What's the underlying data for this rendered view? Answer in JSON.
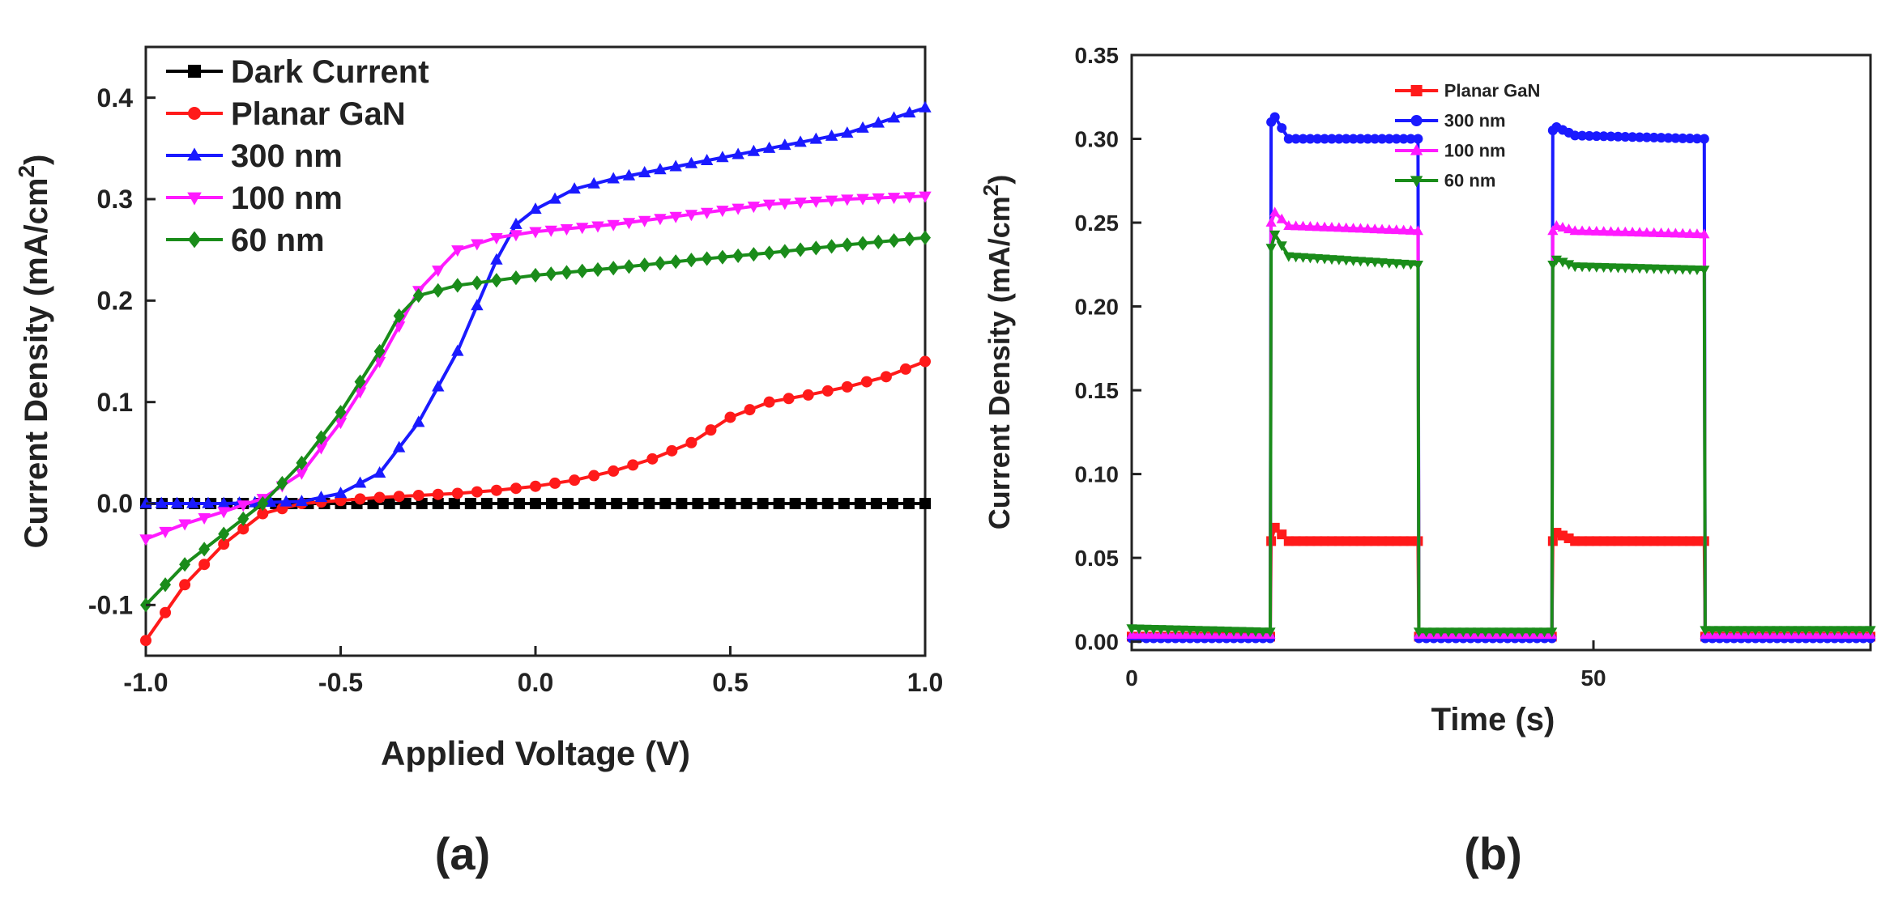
{
  "chart_data": [
    {
      "panel_label": "(a)",
      "type": "line",
      "title": "",
      "xlabel": "Applied Voltage (V)",
      "ylabel": "Current Density (mA/cm",
      "ylabel_sup": "2",
      "ylabel_end": ")",
      "xlim": [
        -1.0,
        1.0
      ],
      "ylim": [
        -0.15,
        0.45
      ],
      "xticks": [
        -1.0,
        -0.5,
        0.0,
        0.5,
        1.0
      ],
      "xtick_labels": [
        "-1.0",
        "-0.5",
        "0.0",
        "0.5",
        "1.0"
      ],
      "yticks": [
        -0.1,
        0.0,
        0.1,
        0.2,
        0.3,
        0.4
      ],
      "ytick_labels": [
        "-0.1",
        "0.0",
        "0.1",
        "0.2",
        "0.3",
        "0.4"
      ],
      "legend_position": "top-left",
      "series": [
        {
          "name": "Dark Current",
          "color": "#000000",
          "marker": "square",
          "x": [
            -1.0,
            -0.5,
            0.0,
            0.5,
            1.0
          ],
          "y": [
            0.0,
            0.0,
            0.0,
            0.0,
            0.0
          ]
        },
        {
          "name": "Planar GaN",
          "color": "#ff1a1a",
          "marker": "circle",
          "x": [
            -1.0,
            -0.9,
            -0.8,
            -0.7,
            -0.6,
            -0.5,
            -0.4,
            -0.3,
            -0.2,
            -0.1,
            0.0,
            0.1,
            0.2,
            0.3,
            0.4,
            0.5,
            0.6,
            0.7,
            0.8,
            0.9,
            1.0
          ],
          "y": [
            -0.135,
            -0.08,
            -0.04,
            -0.01,
            0.0,
            0.003,
            0.006,
            0.008,
            0.01,
            0.013,
            0.017,
            0.023,
            0.032,
            0.044,
            0.06,
            0.085,
            0.1,
            0.107,
            0.115,
            0.125,
            0.14
          ]
        },
        {
          "name": "300 nm",
          "color": "#1a1aff",
          "marker": "triangle-up",
          "x": [
            -1.0,
            -0.8,
            -0.6,
            -0.5,
            -0.4,
            -0.3,
            -0.2,
            -0.1,
            -0.05,
            0.0,
            0.1,
            0.2,
            0.4,
            0.6,
            0.8,
            1.0
          ],
          "y": [
            0.0,
            0.0,
            0.002,
            0.01,
            0.03,
            0.08,
            0.15,
            0.24,
            0.275,
            0.29,
            0.31,
            0.32,
            0.335,
            0.35,
            0.365,
            0.39
          ]
        },
        {
          "name": "100 nm",
          "color": "#ff1aff",
          "marker": "triangle-down",
          "x": [
            -1.0,
            -0.9,
            -0.8,
            -0.7,
            -0.6,
            -0.5,
            -0.4,
            -0.3,
            -0.2,
            -0.1,
            0.0,
            0.2,
            0.4,
            0.6,
            0.8,
            1.0
          ],
          "y": [
            -0.035,
            -0.02,
            -0.008,
            0.005,
            0.03,
            0.08,
            0.14,
            0.21,
            0.25,
            0.262,
            0.268,
            0.275,
            0.285,
            0.295,
            0.3,
            0.303
          ]
        },
        {
          "name": " 60 nm",
          "color": "#1a8c1a",
          "marker": "diamond",
          "x": [
            -1.0,
            -0.9,
            -0.8,
            -0.7,
            -0.6,
            -0.5,
            -0.4,
            -0.35,
            -0.3,
            -0.2,
            -0.1,
            0.0,
            0.2,
            0.4,
            0.6,
            0.8,
            1.0
          ],
          "y": [
            -0.1,
            -0.06,
            -0.03,
            0.0,
            0.04,
            0.09,
            0.15,
            0.185,
            0.205,
            0.215,
            0.22,
            0.225,
            0.232,
            0.24,
            0.247,
            0.255,
            0.262
          ]
        }
      ]
    },
    {
      "panel_label": "(b)",
      "type": "line",
      "title": "",
      "xlabel": "Time (s)",
      "ylabel": "Current Density (mA/cm",
      "ylabel_sup": "2",
      "ylabel_end": ")",
      "xlim": [
        0,
        80
      ],
      "ylim": [
        -0.005,
        0.35
      ],
      "xticks": [
        0,
        50
      ],
      "xtick_labels": [
        "0",
        "50"
      ],
      "yticks": [
        0.0,
        0.05,
        0.1,
        0.15,
        0.2,
        0.25,
        0.3,
        0.35
      ],
      "ytick_labels": [
        "0.00",
        "0.05",
        "0.10",
        "0.15",
        "0.20",
        "0.25",
        "0.30",
        "0.35"
      ],
      "legend_position": "top-center",
      "series": [
        {
          "name": "Planar GaN",
          "color": "#ff1a1a",
          "marker": "square",
          "x": [
            0,
            15,
            15.1,
            15.5,
            17,
            31,
            31.1,
            45.5,
            45.6,
            46,
            48,
            62,
            62.1,
            80
          ],
          "y": [
            0.003,
            0.003,
            0.06,
            0.068,
            0.06,
            0.06,
            0.003,
            0.003,
            0.06,
            0.065,
            0.06,
            0.06,
            0.003,
            0.003
          ]
        },
        {
          "name": "300 nm",
          "color": "#1a1aff",
          "marker": "circle",
          "x": [
            0,
            15,
            15.1,
            15.5,
            17,
            31,
            31.1,
            45.5,
            45.6,
            46,
            48,
            62,
            62.1,
            80
          ],
          "y": [
            0.002,
            0.002,
            0.31,
            0.313,
            0.3,
            0.3,
            0.002,
            0.002,
            0.305,
            0.307,
            0.302,
            0.3,
            0.002,
            0.002
          ]
        },
        {
          "name": "100 nm",
          "color": "#ff1aff",
          "marker": "triangle-up",
          "x": [
            0,
            15,
            15.1,
            15.5,
            17,
            31,
            31.1,
            45.5,
            45.6,
            46,
            48,
            62,
            62.1,
            80
          ],
          "y": [
            0.004,
            0.004,
            0.25,
            0.256,
            0.248,
            0.245,
            0.004,
            0.004,
            0.245,
            0.248,
            0.245,
            0.243,
            0.004,
            0.004
          ]
        },
        {
          "name": " 60 nm",
          "color": "#1a8c1a",
          "marker": "triangle-down",
          "x": [
            0,
            15,
            15.1,
            15.5,
            17,
            31,
            31.1,
            45.5,
            45.6,
            46,
            48,
            62,
            62.1,
            80
          ],
          "y": [
            0.008,
            0.006,
            0.235,
            0.243,
            0.23,
            0.225,
            0.006,
            0.006,
            0.225,
            0.228,
            0.224,
            0.222,
            0.007,
            0.007
          ]
        }
      ]
    }
  ]
}
